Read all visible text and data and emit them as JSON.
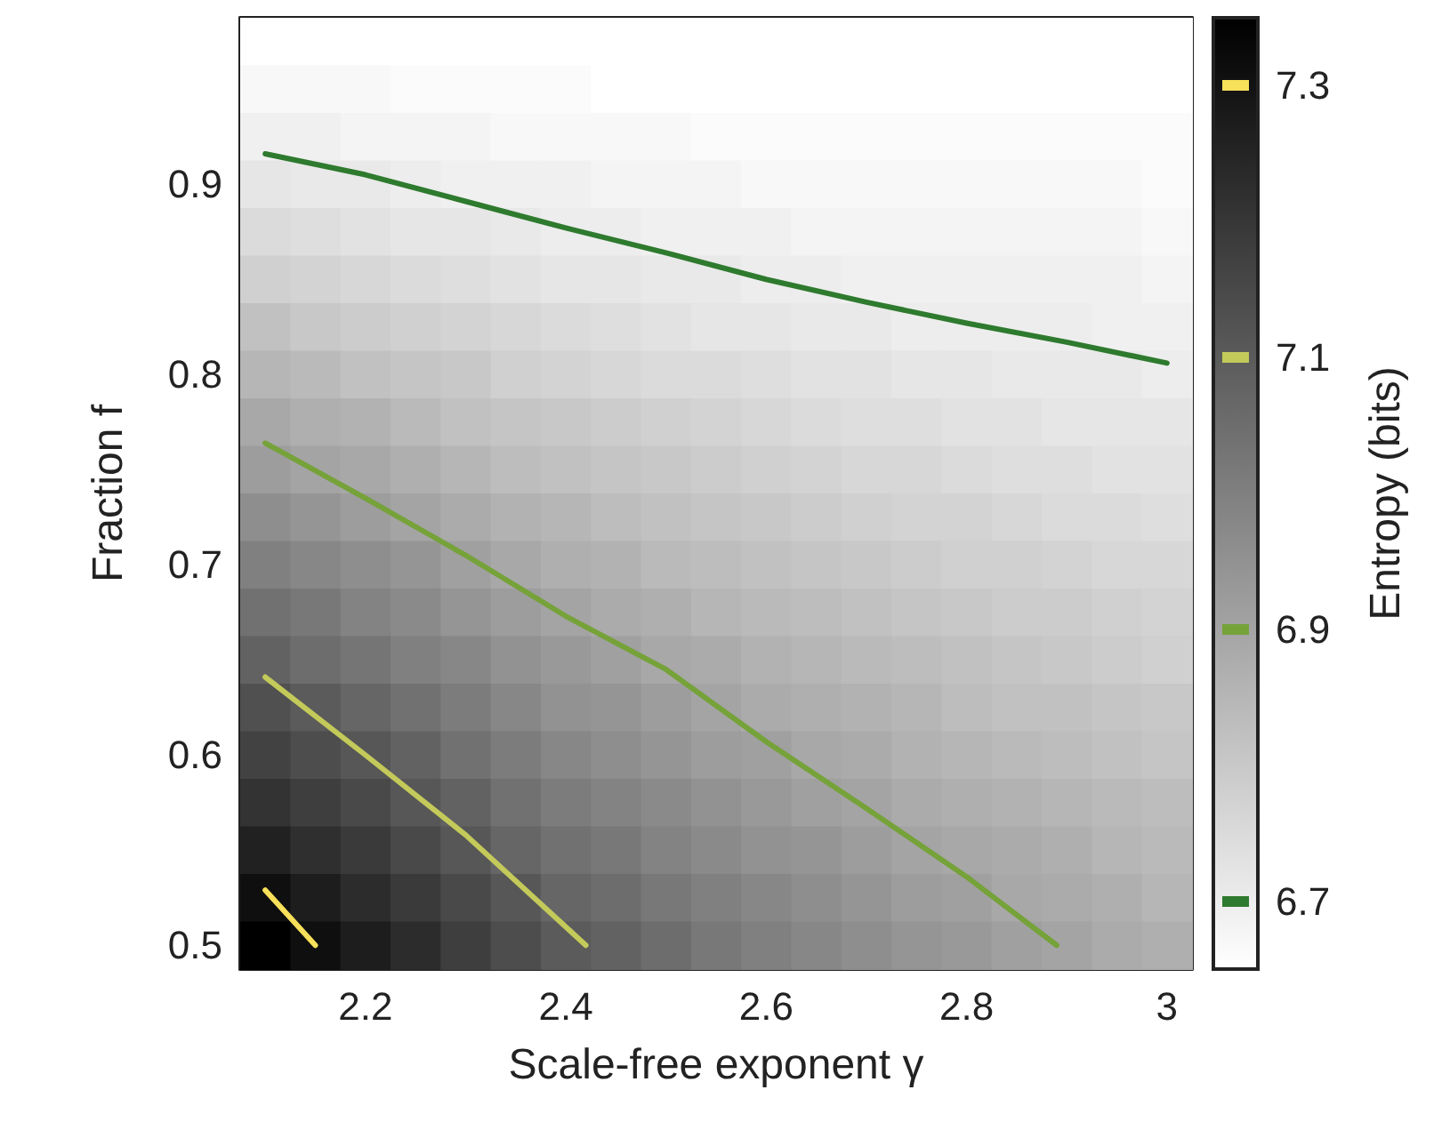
{
  "chart_data": {
    "type": "heatmap",
    "xlabel": "Scale-free exponent γ",
    "ylabel": "Fraction f",
    "clabel": "Entropy (bits)",
    "x": [
      2.1,
      2.15,
      2.2,
      2.25,
      2.3,
      2.35,
      2.4,
      2.45,
      2.5,
      2.55,
      2.6,
      2.65,
      2.7,
      2.75,
      2.8,
      2.85,
      2.9,
      2.95,
      3.0
    ],
    "y": [
      0.975,
      0.95,
      0.925,
      0.9,
      0.875,
      0.85,
      0.825,
      0.8,
      0.775,
      0.75,
      0.725,
      0.7,
      0.675,
      0.65,
      0.625,
      0.6,
      0.575,
      0.55,
      0.525,
      0.5
    ],
    "cells": [
      [
        6.65,
        6.65,
        6.65,
        6.65,
        6.65,
        6.65,
        6.65,
        6.65,
        6.65,
        6.65,
        6.65,
        6.65,
        6.65,
        6.65,
        6.65,
        6.65,
        6.65,
        6.65,
        6.65
      ],
      [
        6.67,
        6.67,
        6.67,
        6.66,
        6.66,
        6.66,
        6.66,
        6.65,
        6.65,
        6.65,
        6.65,
        6.65,
        6.65,
        6.65,
        6.65,
        6.65,
        6.65,
        6.65,
        6.65
      ],
      [
        6.69,
        6.69,
        6.68,
        6.68,
        6.68,
        6.67,
        6.67,
        6.67,
        6.67,
        6.66,
        6.66,
        6.66,
        6.66,
        6.66,
        6.66,
        6.66,
        6.66,
        6.66,
        6.66
      ],
      [
        6.72,
        6.71,
        6.71,
        6.7,
        6.69,
        6.69,
        6.69,
        6.68,
        6.68,
        6.68,
        6.67,
        6.67,
        6.67,
        6.67,
        6.67,
        6.67,
        6.67,
        6.67,
        6.66
      ],
      [
        6.75,
        6.74,
        6.73,
        6.72,
        6.72,
        6.71,
        6.7,
        6.7,
        6.69,
        6.69,
        6.69,
        6.68,
        6.68,
        6.68,
        6.68,
        6.68,
        6.68,
        6.68,
        6.67
      ],
      [
        6.78,
        6.77,
        6.76,
        6.75,
        6.74,
        6.73,
        6.72,
        6.72,
        6.71,
        6.71,
        6.7,
        6.7,
        6.69,
        6.69,
        6.69,
        6.69,
        6.69,
        6.69,
        6.68
      ],
      [
        6.82,
        6.8,
        6.79,
        6.78,
        6.77,
        6.76,
        6.75,
        6.74,
        6.73,
        6.72,
        6.72,
        6.71,
        6.71,
        6.7,
        6.7,
        6.7,
        6.7,
        6.69,
        6.69
      ],
      [
        6.85,
        6.84,
        6.82,
        6.81,
        6.8,
        6.78,
        6.77,
        6.76,
        6.75,
        6.75,
        6.74,
        6.73,
        6.73,
        6.72,
        6.72,
        6.71,
        6.71,
        6.71,
        6.7
      ],
      [
        6.89,
        6.87,
        6.86,
        6.84,
        6.82,
        6.81,
        6.8,
        6.79,
        6.78,
        6.77,
        6.76,
        6.75,
        6.74,
        6.74,
        6.73,
        6.73,
        6.72,
        6.72,
        6.72
      ],
      [
        6.92,
        6.9,
        6.89,
        6.87,
        6.85,
        6.83,
        6.82,
        6.81,
        6.8,
        6.79,
        6.78,
        6.77,
        6.76,
        6.76,
        6.75,
        6.74,
        6.74,
        6.73,
        6.73
      ],
      [
        6.96,
        6.94,
        6.92,
        6.9,
        6.88,
        6.86,
        6.85,
        6.83,
        6.82,
        6.81,
        6.8,
        6.79,
        6.78,
        6.77,
        6.77,
        6.76,
        6.75,
        6.75,
        6.74
      ],
      [
        7.0,
        6.98,
        6.96,
        6.94,
        6.91,
        6.89,
        6.87,
        6.86,
        6.84,
        6.83,
        6.82,
        6.81,
        6.8,
        6.79,
        6.78,
        6.78,
        6.77,
        6.76,
        6.76
      ],
      [
        7.04,
        7.02,
        6.99,
        6.97,
        6.94,
        6.92,
        6.9,
        6.88,
        6.87,
        6.85,
        6.84,
        6.83,
        6.82,
        6.81,
        6.8,
        6.79,
        6.79,
        6.78,
        6.77
      ],
      [
        7.08,
        7.05,
        7.03,
        7.0,
        6.98,
        6.95,
        6.93,
        6.91,
        6.89,
        6.88,
        6.86,
        6.85,
        6.84,
        6.83,
        6.82,
        6.81,
        6.8,
        6.79,
        6.78
      ],
      [
        7.13,
        7.1,
        7.07,
        7.04,
        7.01,
        6.98,
        6.95,
        6.94,
        6.92,
        6.9,
        6.88,
        6.87,
        6.86,
        6.85,
        6.83,
        6.82,
        6.82,
        6.81,
        6.8
      ],
      [
        7.17,
        7.14,
        7.11,
        7.08,
        7.04,
        7.01,
        6.98,
        6.96,
        6.94,
        6.92,
        6.91,
        6.89,
        6.88,
        6.86,
        6.85,
        6.84,
        6.83,
        6.82,
        6.81
      ],
      [
        7.21,
        7.18,
        7.15,
        7.11,
        7.08,
        7.04,
        7.01,
        6.99,
        6.97,
        6.95,
        6.93,
        6.91,
        6.9,
        6.88,
        6.87,
        6.86,
        6.85,
        6.84,
        6.83
      ],
      [
        7.26,
        7.22,
        7.19,
        7.15,
        7.11,
        7.07,
        7.04,
        7.02,
        6.99,
        6.97,
        6.95,
        6.94,
        6.92,
        6.9,
        6.89,
        6.88,
        6.87,
        6.85,
        6.84
      ],
      [
        7.31,
        7.27,
        7.23,
        7.19,
        7.15,
        7.11,
        7.07,
        7.05,
        7.02,
        7.0,
        6.98,
        6.96,
        6.94,
        6.92,
        6.91,
        6.89,
        6.88,
        6.87,
        6.85
      ],
      [
        7.35,
        7.31,
        7.27,
        7.23,
        7.18,
        7.14,
        7.1,
        7.08,
        7.05,
        7.02,
        7.0,
        6.98,
        6.96,
        6.94,
        6.93,
        6.91,
        6.9,
        6.88,
        6.87
      ]
    ],
    "clim": [
      6.65,
      7.35
    ],
    "cticks": [
      6.7,
      6.9,
      7.1,
      7.3
    ],
    "xlim": [
      2.075,
      3.025
    ],
    "xticks": [
      2.2,
      2.4,
      2.6,
      2.8,
      3
    ],
    "ylim": [
      0.4875,
      0.9875
    ],
    "yticks": [
      0.5,
      0.6,
      0.7,
      0.8,
      0.9
    ],
    "series": [
      {
        "type": "line",
        "color": "#2e7a2e",
        "x": [
          2.1,
          2.2,
          2.3,
          2.4,
          2.5,
          2.6,
          2.7,
          2.8,
          2.9,
          3.0
        ],
        "values": [
          0.916,
          0.905,
          0.891,
          0.877,
          0.864,
          0.85,
          0.838,
          0.827,
          0.817,
          0.806
        ]
      },
      {
        "type": "line",
        "color": "#76a23a",
        "x": [
          2.1,
          2.2,
          2.3,
          2.4,
          2.5,
          2.6,
          2.7,
          2.8,
          2.89
        ],
        "values": [
          0.764,
          0.735,
          0.705,
          0.673,
          0.645,
          0.607,
          0.572,
          0.536,
          0.5
        ]
      },
      {
        "type": "line",
        "color": "#c3ca5a",
        "x": [
          2.1,
          2.2,
          2.3,
          2.42
        ],
        "values": [
          0.641,
          0.6,
          0.558,
          0.5
        ]
      },
      {
        "type": "line",
        "color": "#f7e05a",
        "x": [
          2.1,
          2.15
        ],
        "values": [
          0.529,
          0.5
        ]
      }
    ]
  }
}
